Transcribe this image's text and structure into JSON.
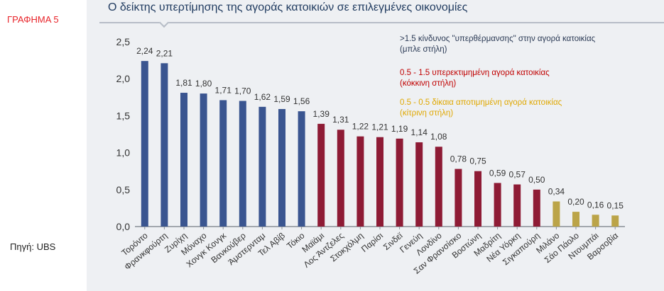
{
  "figure_label": "ΓΡΑΦΗΜΑ 5",
  "source": "Πηγή: UBS",
  "colors": {
    "blue": "#3a5590",
    "red": "#8e1b35",
    "yellow": "#bba448",
    "axis": "#8a8f98",
    "text": "#333333"
  },
  "legend": {
    "blue_line1": ">1.5 κίνδυνος \"υπερθέρμανσης\" στην αγορά κατοικίας",
    "blue_line2": "(μπλε στήλη)",
    "red_line1": "0.5 - 1.5 υπερεκτιμημένη αγορά κατοικίας",
    "red_line2": "(κόκκινη στήλη)",
    "yellow_line1": " 0.5 - 0.5 δίκαια αποτιμημένη αγορά κατοικίας",
    "yellow_line2": "(κίτρινη στήλη)"
  },
  "chart_data": {
    "type": "bar",
    "title": "Ο δείκτης υπερτίμησης της αγοράς κατοικιών σε επιλεγμένες οικονομίες",
    "xlabel": "",
    "ylabel": "",
    "ylim": [
      0,
      2.5
    ],
    "yticks": [
      "0,0",
      "0,5",
      "1,0",
      "1,5",
      "2,0",
      "2,5"
    ],
    "categories": [
      "Τορόντο",
      "Φρανκφούρτη",
      "Ζυρίχη",
      "Μόναχο",
      "Χονγκ Κονγκ",
      "Βανκούβερ",
      "Άμστερνταμ",
      "Τελ Αβίβ",
      "Τόκιο",
      "Μαϊάμι",
      "Λος Άντζελες",
      "Στοκχόλμη",
      "Παρίσι",
      "Σινδεϊ",
      "Γενεύη",
      "Λονδίνο",
      "Σαν Φρανσίσκο",
      "Βοστώνη",
      "Μαδρίτη",
      "Νέα Υόρκη",
      "Σιγκαπούρη",
      "Μιλάνο",
      "Σάο Πάολο",
      "Ντουμπάι",
      "Βαρσοβία"
    ],
    "values": [
      2.24,
      2.21,
      1.81,
      1.8,
      1.71,
      1.7,
      1.62,
      1.59,
      1.56,
      1.39,
      1.31,
      1.22,
      1.21,
      1.19,
      1.14,
      1.08,
      0.78,
      0.75,
      0.59,
      0.57,
      0.5,
      0.34,
      0.2,
      0.16,
      0.15
    ],
    "labels": [
      "2,24",
      "2,21",
      "1,81",
      "1,80",
      "1,71",
      "1,70",
      "1,62",
      "1,59",
      "1,56",
      "1,39",
      "1,31",
      "1,22",
      "1,21",
      "1,19",
      "1,14",
      "1,08",
      "0,78",
      "0,75",
      "0,59",
      "0,57",
      "0,50",
      "0,34",
      "0,20",
      "0,16",
      "0,15"
    ],
    "colors": [
      "blue",
      "blue",
      "blue",
      "blue",
      "blue",
      "blue",
      "blue",
      "blue",
      "blue",
      "red",
      "red",
      "red",
      "red",
      "red",
      "red",
      "red",
      "red",
      "red",
      "red",
      "red",
      "red",
      "yellow",
      "yellow",
      "yellow",
      "yellow"
    ]
  }
}
